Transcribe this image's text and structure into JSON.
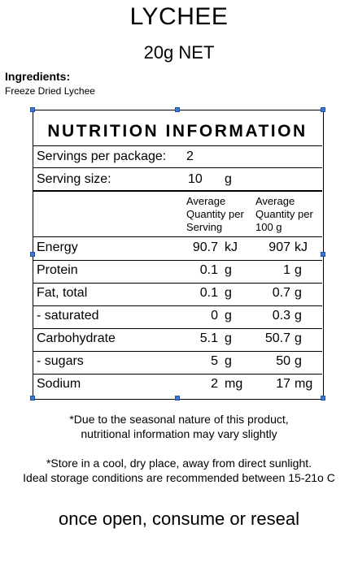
{
  "product": {
    "title": "LYCHEE",
    "net": "20g NET"
  },
  "ingredients": {
    "heading": "Ingredients:",
    "text": "Freeze Dried Lychee"
  },
  "nutrition": {
    "title": "NUTRITION INFORMATION",
    "servings_label": "Servings per package:",
    "servings_value": "2",
    "serving_size_label": "Serving size:",
    "serving_size_value": "10",
    "serving_size_unit": "g",
    "col1_head": [
      "Average",
      "Quantity per",
      "Serving"
    ],
    "col2_head": [
      "Average",
      "Quantity per",
      "100 g"
    ],
    "rows": [
      {
        "name": "Energy",
        "v1": "90.7",
        "u1": "kJ",
        "v2": "907",
        "u2": "kJ"
      },
      {
        "name": "Protein",
        "v1": "0.1",
        "u1": "g",
        "v2": "1",
        "u2": "g"
      },
      {
        "name": "Fat, total",
        "v1": "0.1",
        "u1": "g",
        "v2": "0.7",
        "u2": "g"
      },
      {
        "name": "- saturated",
        "v1": "0",
        "u1": "g",
        "v2": "0.3",
        "u2": "g"
      },
      {
        "name": "Carbohydrate",
        "v1": "5.1",
        "u1": "g",
        "v2": "50.7",
        "u2": "g"
      },
      {
        "name": "- sugars",
        "v1": "5",
        "u1": "g",
        "v2": "50",
        "u2": "g"
      },
      {
        "name": "Sodium",
        "v1": "2",
        "u1": "mg",
        "v2": "17",
        "u2": "mg"
      }
    ]
  },
  "notes": {
    "seasonal_1": "*Due to the seasonal nature of this product,",
    "seasonal_2": "nutritional information may vary slightly",
    "storage_1": "*Store in a cool, dry place, away from direct sunlight.",
    "storage_2": "Ideal storage conditions are recommended between 15-21o C"
  },
  "footer": {
    "text": "once open, consume or reseal"
  }
}
